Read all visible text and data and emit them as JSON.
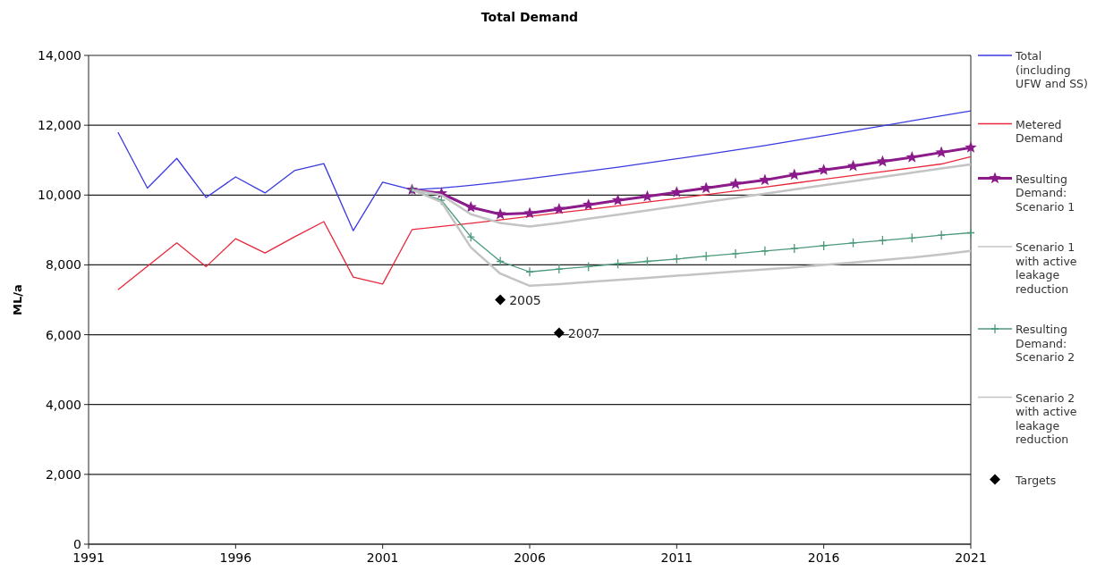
{
  "chart_data": {
    "type": "line",
    "title": "Total Demand",
    "ylabel": "ML/a",
    "xlim": [
      1991,
      2021
    ],
    "xticks": [
      1991,
      1996,
      2001,
      2006,
      2011,
      2016,
      2021
    ],
    "ylim": [
      0,
      14000
    ],
    "yticks": [
      {
        "value": 0,
        "label": "0"
      },
      {
        "value": 2000,
        "label": "2,000"
      },
      {
        "value": 4000,
        "label": "4,000"
      },
      {
        "value": 6000,
        "label": "6,000"
      },
      {
        "value": 8000,
        "label": "8,000"
      },
      {
        "value": 10000,
        "label": "10,000"
      },
      {
        "value": 12000,
        "label": "12,000"
      },
      {
        "value": 14000,
        "label": "14,000"
      }
    ],
    "grid": "y",
    "legend": "right",
    "line_style": "solid",
    "series": [
      {
        "name": "Total (including UFW and SS)",
        "color": "#3a3ae0",
        "marker": "none",
        "x": [
          1992,
          1993,
          1994,
          1995,
          1996,
          1997,
          1998,
          1999,
          2000,
          2001,
          2002,
          2003,
          2004,
          2005,
          2006,
          2007,
          2008,
          2009,
          2010,
          2011,
          2012,
          2013,
          2014,
          2015,
          2016,
          2017,
          2018,
          2019,
          2020,
          2021
        ],
        "values": [
          11800,
          10200,
          11050,
          9930,
          10520,
          10060,
          10700,
          10900,
          8980,
          10370,
          10150,
          10200,
          10280,
          10370,
          10470,
          10580,
          10690,
          10800,
          10920,
          11040,
          11160,
          11290,
          11420,
          11560,
          11700,
          11840,
          11980,
          12130,
          12270,
          12410
        ]
      },
      {
        "name": "Metered Demand",
        "color": "#e8283c",
        "marker": "none",
        "x": [
          1992,
          1993,
          1994,
          1995,
          1996,
          1997,
          1998,
          1999,
          2000,
          2001,
          2002,
          2003,
          2004,
          2005,
          2006,
          2007,
          2008,
          2009,
          2010,
          2011,
          2012,
          2013,
          2014,
          2015,
          2016,
          2017,
          2018,
          2019,
          2020,
          2021
        ],
        "values": [
          7290,
          7960,
          8630,
          7950,
          8750,
          8340,
          8800,
          9240,
          7650,
          7450,
          9010,
          9100,
          9190,
          9290,
          9390,
          9490,
          9590,
          9690,
          9800,
          9900,
          10010,
          10120,
          10230,
          10340,
          10450,
          10560,
          10670,
          10780,
          10890,
          11100
        ]
      },
      {
        "name": "Resulting Demand: Scenario 1",
        "color": "#8b1a8b",
        "marker": "star",
        "x": [
          2002,
          2003,
          2004,
          2005,
          2006,
          2007,
          2008,
          2009,
          2010,
          2011,
          2012,
          2013,
          2014,
          2015,
          2016,
          2017,
          2018,
          2019,
          2020,
          2021
        ],
        "values": [
          10150,
          10050,
          9650,
          9450,
          9480,
          9600,
          9720,
          9850,
          9960,
          10080,
          10200,
          10320,
          10430,
          10580,
          10720,
          10830,
          10960,
          11080,
          11220,
          11360
        ]
      },
      {
        "name": "Scenario 1 with active leakage reduction",
        "color": "#c4c4c4",
        "marker": "none",
        "x": [
          2002,
          2003,
          2004,
          2005,
          2006,
          2007,
          2008,
          2009,
          2010,
          2011,
          2012,
          2013,
          2014,
          2015,
          2016,
          2017,
          2018,
          2019,
          2020,
          2021
        ],
        "values": [
          10150,
          10000,
          9450,
          9200,
          9100,
          9200,
          9320,
          9440,
          9560,
          9680,
          9800,
          9920,
          10040,
          10160,
          10280,
          10400,
          10520,
          10640,
          10760,
          10880
        ]
      },
      {
        "name": "Resulting Demand: Scenario 2",
        "color": "#4a9a7a",
        "marker": "cross",
        "x": [
          2002,
          2003,
          2004,
          2005,
          2006,
          2007,
          2008,
          2009,
          2010,
          2011,
          2012,
          2013,
          2014,
          2015,
          2016,
          2017,
          2018,
          2019,
          2020,
          2021
        ],
        "values": [
          10150,
          9850,
          8800,
          8100,
          7800,
          7880,
          7950,
          8030,
          8100,
          8170,
          8250,
          8320,
          8400,
          8470,
          8550,
          8630,
          8700,
          8770,
          8850,
          8920
        ]
      },
      {
        "name": "Scenario 2 with active leakage reduction",
        "color": "#c4c4c4",
        "marker": "none",
        "x": [
          2002,
          2003,
          2004,
          2005,
          2006,
          2007,
          2008,
          2009,
          2010,
          2011,
          2012,
          2013,
          2014,
          2015,
          2016,
          2017,
          2018,
          2019,
          2020,
          2021
        ],
        "values": [
          10150,
          9800,
          8500,
          7750,
          7400,
          7450,
          7510,
          7570,
          7630,
          7690,
          7750,
          7810,
          7870,
          7930,
          8000,
          8070,
          8140,
          8210,
          8300,
          8400
        ]
      },
      {
        "name": "Targets",
        "type": "scatter",
        "color": "#000000",
        "marker": "diamond",
        "x": [
          2005,
          2007
        ],
        "values": [
          7000,
          6050
        ]
      }
    ],
    "annotations": [
      {
        "text": "2005",
        "x": 2005,
        "y": 7000
      },
      {
        "text": "2007",
        "x": 2007,
        "y": 6050
      }
    ]
  }
}
